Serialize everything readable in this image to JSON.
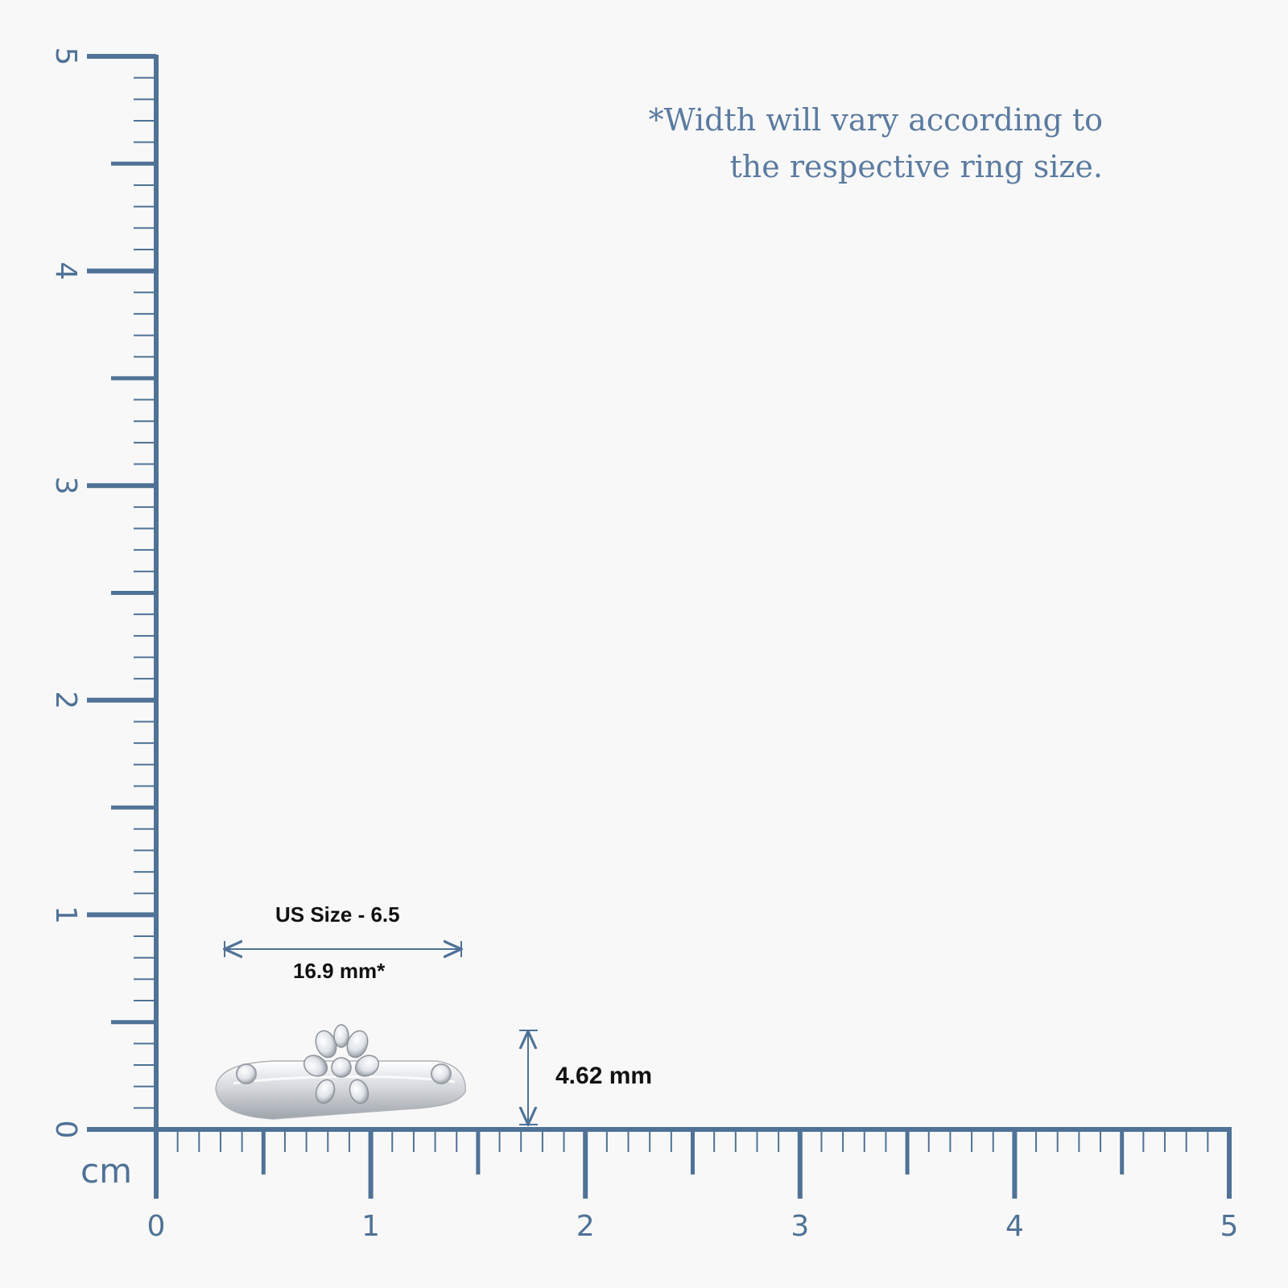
{
  "note": {
    "line1": "*Width will vary according to",
    "line2": "the respective ring size."
  },
  "ruler": {
    "unit": "cm",
    "x_labels": [
      "0",
      "1",
      "2",
      "3",
      "4",
      "5"
    ],
    "y_labels": [
      "0",
      "1",
      "2",
      "3",
      "4",
      "5"
    ],
    "color": "#4f7296"
  },
  "measurements": {
    "size_label": "US Size - 6.5",
    "width_label": "16.9 mm*",
    "height_label": "4.62 mm"
  },
  "product": {
    "image": "white-gold-diamond-cluster-ring"
  }
}
